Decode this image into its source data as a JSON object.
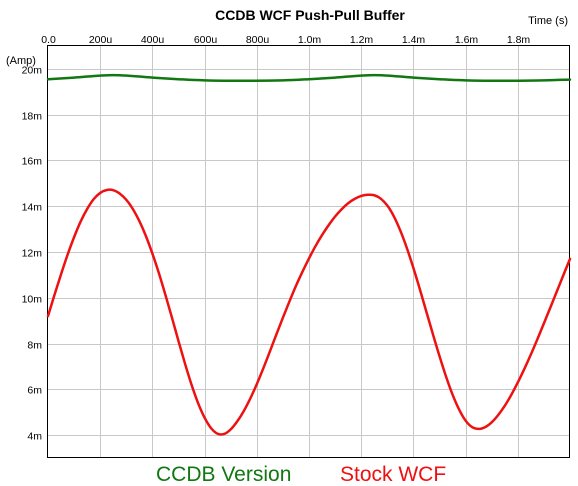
{
  "chart_data": {
    "type": "line",
    "title": "CCDB WCF Push-Pull Buffer",
    "xlabel": "Time  (s)",
    "ylabel": "(Amp)",
    "xlim": [
      0,
      0.002
    ],
    "ylim": [
      3,
      21
    ],
    "x_ticks": [
      {
        "value": 0,
        "label": "0.0"
      },
      {
        "value": 0.0002,
        "label": "200u"
      },
      {
        "value": 0.0004,
        "label": "400u"
      },
      {
        "value": 0.0006,
        "label": "600u"
      },
      {
        "value": 0.0008,
        "label": "800u"
      },
      {
        "value": 0.001,
        "label": "1.0m"
      },
      {
        "value": 0.0012,
        "label": "1.2m"
      },
      {
        "value": 0.0014,
        "label": "1.4m"
      },
      {
        "value": 0.0016,
        "label": "1.6m"
      },
      {
        "value": 0.0018,
        "label": "1.8m"
      }
    ],
    "y_ticks": [
      {
        "value": 4,
        "label": "4m"
      },
      {
        "value": 6,
        "label": "6m"
      },
      {
        "value": 8,
        "label": "8m"
      },
      {
        "value": 10,
        "label": "10m"
      },
      {
        "value": 12,
        "label": "12m"
      },
      {
        "value": 14,
        "label": "14m"
      },
      {
        "value": 16,
        "label": "16m"
      },
      {
        "value": 18,
        "label": "18m"
      },
      {
        "value": 20,
        "label": "20m"
      }
    ],
    "grid": true,
    "legend": "bottom",
    "series": [
      {
        "name": "CCDB Version",
        "color": "#117711",
        "x": [
          0,
          0.0001,
          0.00025,
          0.0004,
          0.0005,
          0.0006,
          0.00075,
          0.0009,
          0.001,
          0.0011,
          0.00125,
          0.0014,
          0.0015,
          0.0016,
          0.00175,
          0.0019,
          0.002
        ],
        "y": [
          19.55,
          19.62,
          19.73,
          19.62,
          19.55,
          19.5,
          19.48,
          19.5,
          19.55,
          19.62,
          19.73,
          19.62,
          19.55,
          19.5,
          19.48,
          19.5,
          19.53
        ]
      },
      {
        "name": "Stock WCF",
        "color": "#ee1111",
        "x": [
          0,
          2.5e-05,
          5e-05,
          7.5e-05,
          0.0001,
          0.000125,
          0.00015,
          0.000175,
          0.0002,
          0.000225,
          0.00025,
          0.000275,
          0.0003,
          0.000325,
          0.00035,
          0.000375,
          0.0004,
          0.000425,
          0.00045,
          0.000475,
          0.0005,
          0.000525,
          0.00055,
          0.000575,
          0.0006,
          0.000625,
          0.00065,
          0.000675,
          0.0007,
          0.000725,
          0.00075,
          0.000775,
          0.0008,
          0.000825,
          0.00085,
          0.000875,
          0.0009,
          0.000925,
          0.00095,
          0.000975,
          0.001,
          0.001025,
          0.00105,
          0.001075,
          0.0011,
          0.001125,
          0.00115,
          0.001175,
          0.0012,
          0.001225,
          0.00125,
          0.001275,
          0.0013,
          0.001325,
          0.00135,
          0.001375,
          0.0014,
          0.001425,
          0.00145,
          0.001475,
          0.0015,
          0.001525,
          0.00155,
          0.001575,
          0.0016,
          0.001625,
          0.00165,
          0.001675,
          0.0017,
          0.001725,
          0.00175,
          0.001775,
          0.0018,
          0.001825,
          0.00185,
          0.001875,
          0.0019,
          0.001925,
          0.00195,
          0.001975,
          0.002
        ],
        "y": [
          9.2,
          10.13,
          11.03,
          11.88,
          12.65,
          13.33,
          13.88,
          14.31,
          14.58,
          14.71,
          14.7,
          14.55,
          14.28,
          13.88,
          13.35,
          12.7,
          11.93,
          11.07,
          10.12,
          9.13,
          8.11,
          7.12,
          6.2,
          5.4,
          4.76,
          4.3,
          4.06,
          4.05,
          4.25,
          4.6,
          5.05,
          5.6,
          6.23,
          6.92,
          7.65,
          8.4,
          9.13,
          9.84,
          10.52,
          11.14,
          11.72,
          12.26,
          12.74,
          13.17,
          13.55,
          13.87,
          14.13,
          14.32,
          14.45,
          14.5,
          14.48,
          14.33,
          14.03,
          13.56,
          12.93,
          12.17,
          11.3,
          10.36,
          9.38,
          8.4,
          7.45,
          6.56,
          5.77,
          5.12,
          4.63,
          4.35,
          4.27,
          4.35,
          4.56,
          4.88,
          5.28,
          5.76,
          6.3,
          6.89,
          7.52,
          8.19,
          8.88,
          9.58,
          10.29,
          11,
          11.7
        ]
      }
    ]
  }
}
